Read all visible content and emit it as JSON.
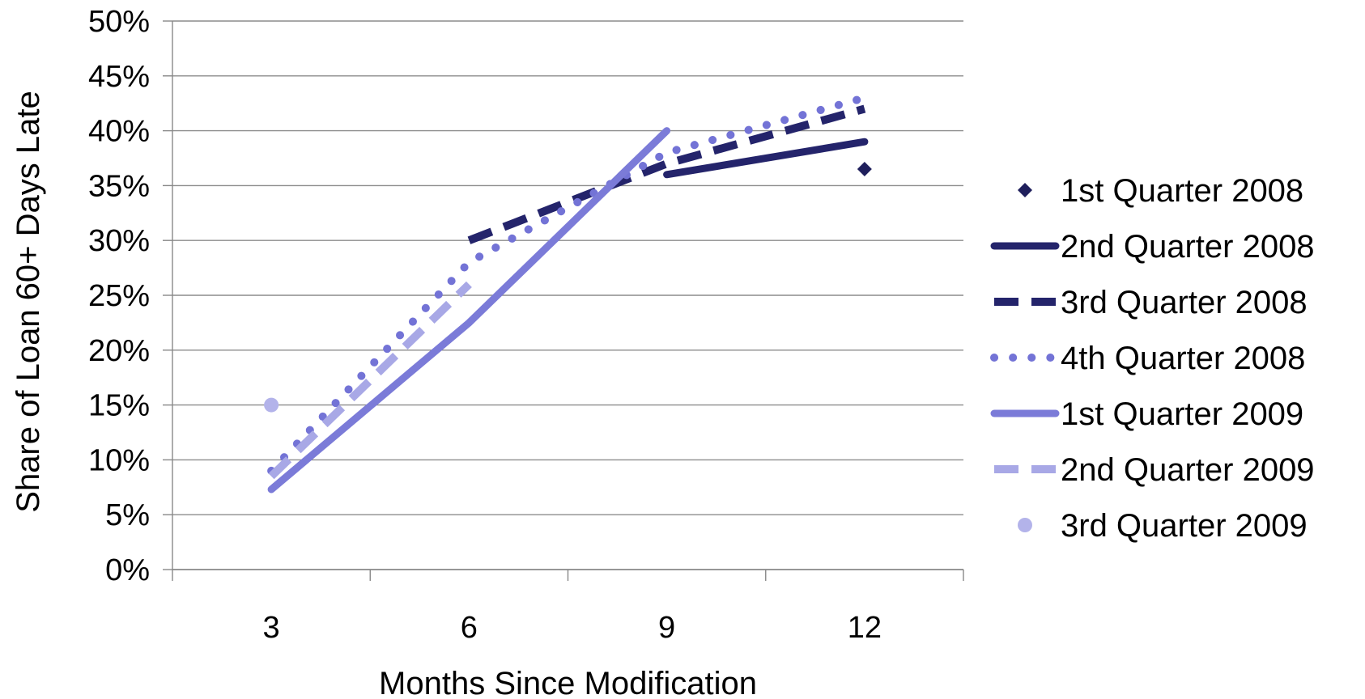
{
  "chart_data": {
    "type": "line",
    "xlabel": "Months Since Modification",
    "ylabel": "Share of Loan 60+ Days Late",
    "x_categories": [
      3,
      6,
      9,
      12
    ],
    "x_ticks": [
      "3",
      "6",
      "9",
      "12"
    ],
    "y_ticks": [
      "0%",
      "5%",
      "10%",
      "15%",
      "20%",
      "25%",
      "30%",
      "35%",
      "40%",
      "45%",
      "50%"
    ],
    "ylim": [
      0,
      50
    ],
    "y_unit": "percent",
    "grid": "horizontal",
    "legend_position": "right",
    "colors": {
      "axis": "#888888",
      "grid": "#8c8c8c",
      "dark_navy": "#24246b",
      "periwinkle": "#7b7bd8",
      "lavender": "#a8a8e6",
      "light_lavender": "#b3b3ea"
    },
    "series": [
      {
        "name": "1st Quarter 2008",
        "style": "diamond-marker",
        "color": "#1f1f5c",
        "points": [
          [
            12,
            36.5
          ]
        ]
      },
      {
        "name": "2nd Quarter 2008",
        "style": "solid",
        "color": "#24246b",
        "points": [
          [
            9,
            36
          ],
          [
            12,
            39
          ]
        ]
      },
      {
        "name": "3rd Quarter 2008",
        "style": "dashed",
        "color": "#24246b",
        "points": [
          [
            6,
            30
          ],
          [
            9,
            37
          ],
          [
            12,
            42
          ]
        ]
      },
      {
        "name": "4th Quarter 2008",
        "style": "dotted",
        "color": "#7373d6",
        "points": [
          [
            3,
            9
          ],
          [
            6,
            28
          ],
          [
            9,
            38
          ],
          [
            12,
            43
          ]
        ]
      },
      {
        "name": "1st Quarter 2009",
        "style": "solid",
        "color": "#7b7bd8",
        "points": [
          [
            3,
            7.3
          ],
          [
            6,
            22.5
          ],
          [
            9,
            40
          ]
        ]
      },
      {
        "name": "2nd Quarter 2009",
        "style": "dashed",
        "color": "#a8a8e6",
        "points": [
          [
            3,
            8.5
          ],
          [
            6,
            26
          ]
        ]
      },
      {
        "name": "3rd Quarter 2009",
        "style": "circle-marker",
        "color": "#b3b3ea",
        "points": [
          [
            3,
            15
          ]
        ]
      }
    ]
  }
}
